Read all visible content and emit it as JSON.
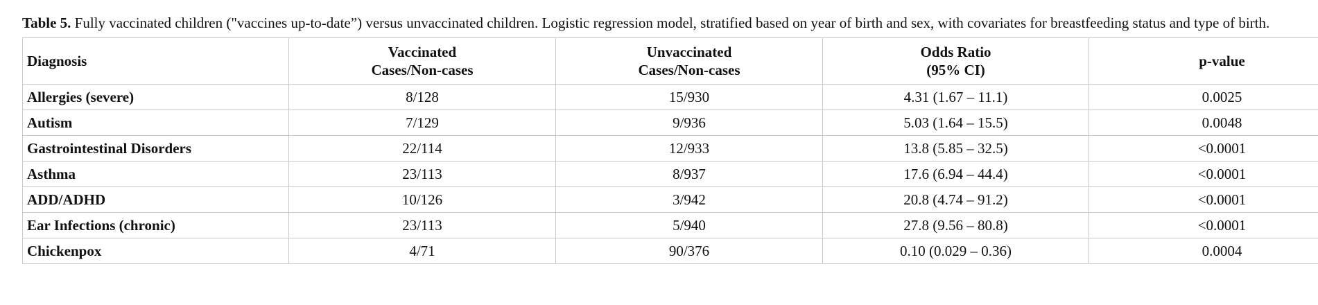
{
  "caption": {
    "label": "Table 5.",
    "text": "Fully vaccinated children (\"vaccines up-to-date”) versus unvaccinated children. Logistic regression model, stratified based on year of birth and sex, with covariates for breastfeeding status and type of birth."
  },
  "table": {
    "headers": [
      {
        "lines": [
          "Diagnosis"
        ]
      },
      {
        "lines": [
          "Vaccinated",
          "Cases/Non-cases"
        ]
      },
      {
        "lines": [
          "Unvaccinated",
          "Cases/Non-cases"
        ]
      },
      {
        "lines": [
          "Odds Ratio",
          "(95% CI)"
        ]
      },
      {
        "lines": [
          "p-value"
        ]
      }
    ],
    "rows": [
      {
        "diagnosis": "Allergies (severe)",
        "vaccinated": "8/128",
        "unvaccinated": "15/930",
        "odds_ratio": "4.31 (1.67 – 11.1)",
        "p_value": "0.0025"
      },
      {
        "diagnosis": "Autism",
        "vaccinated": "7/129",
        "unvaccinated": "9/936",
        "odds_ratio": "5.03 (1.64 – 15.5)",
        "p_value": "0.0048"
      },
      {
        "diagnosis": "Gastrointestinal Disorders",
        "vaccinated": "22/114",
        "unvaccinated": "12/933",
        "odds_ratio": "13.8 (5.85 – 32.5)",
        "p_value": "<0.0001"
      },
      {
        "diagnosis": "Asthma",
        "vaccinated": "23/113",
        "unvaccinated": "8/937",
        "odds_ratio": "17.6 (6.94 – 44.4)",
        "p_value": "<0.0001"
      },
      {
        "diagnosis": "ADD/ADHD",
        "vaccinated": "10/126",
        "unvaccinated": "3/942",
        "odds_ratio": "20.8 (4.74 – 91.2)",
        "p_value": "<0.0001"
      },
      {
        "diagnosis": "Ear Infections (chronic)",
        "vaccinated": "23/113",
        "unvaccinated": "5/940",
        "odds_ratio": "27.8 (9.56 – 80.8)",
        "p_value": "<0.0001"
      },
      {
        "diagnosis": "Chickenpox",
        "vaccinated": "4/71",
        "unvaccinated": "90/376",
        "odds_ratio": "0.10 (0.029 – 0.36)",
        "p_value": "0.0004"
      }
    ]
  }
}
